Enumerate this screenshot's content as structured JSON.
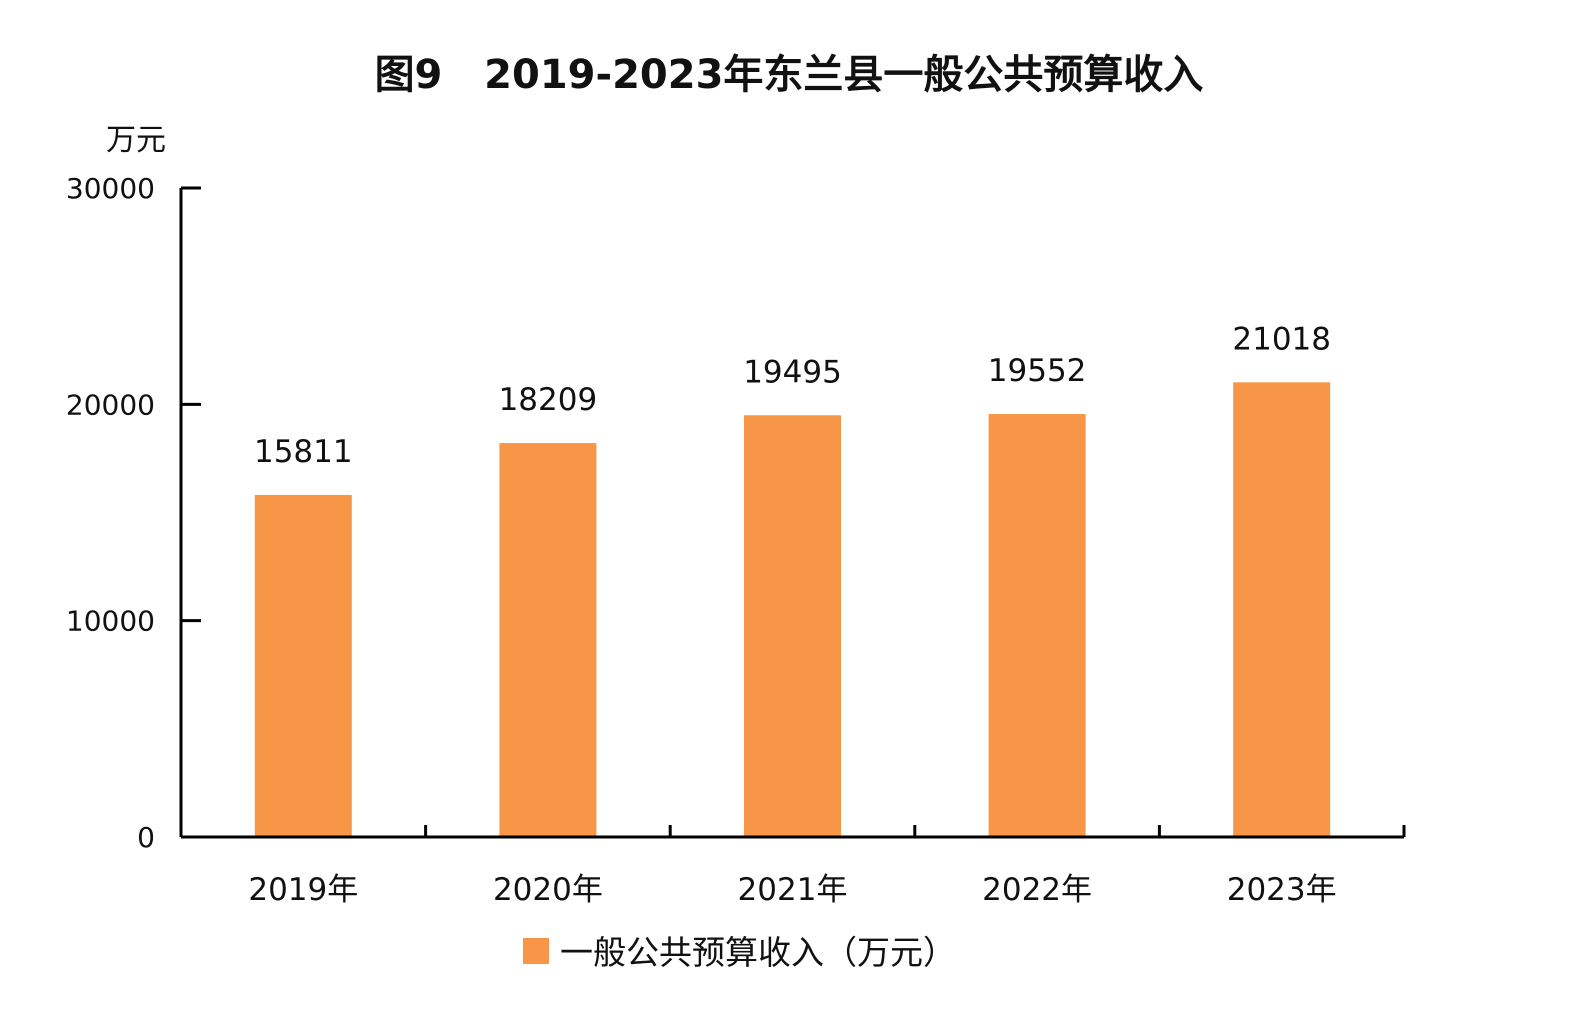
{
  "chart_data": {
    "type": "bar",
    "title": "图9   2019-2023年东兰县一般公共预算收入",
    "ylabel": "万元",
    "xlabel": "",
    "categories": [
      "2019年",
      "2020年",
      "2021年",
      "2022年",
      "2023年"
    ],
    "series": [
      {
        "name": "一般公共预算收入（万元）",
        "values": [
          15811,
          18209,
          19495,
          19552,
          21018
        ],
        "color": "#F79646"
      }
    ],
    "ylim": [
      0,
      30000
    ],
    "yticks": [
      0,
      10000,
      20000,
      30000
    ],
    "grid": false,
    "legend_position": "bottom-center"
  }
}
